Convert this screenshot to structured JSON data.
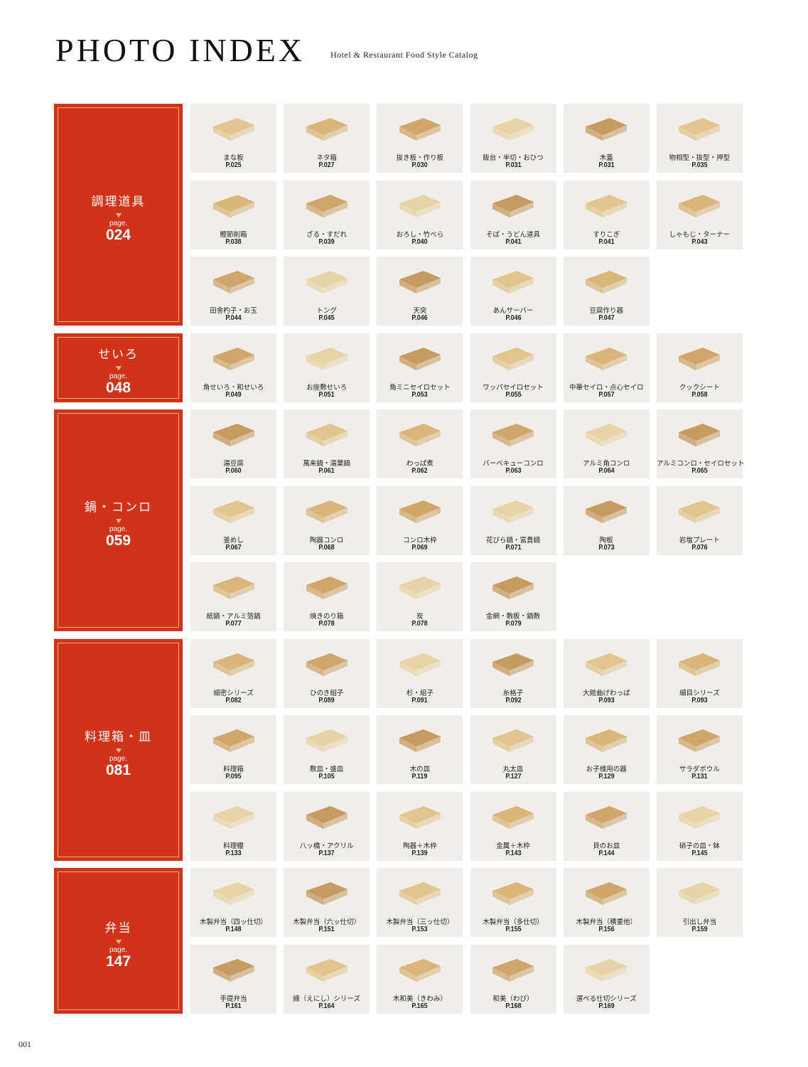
{
  "header": {
    "title": "PHOTO INDEX",
    "subtitle": "Hotel & Restaurant Food Style Catalog"
  },
  "colors": {
    "section_red": "#d13319",
    "cell_bg": "#efeeea",
    "gold": "#e4b27a"
  },
  "page_number": "001",
  "sections": [
    {
      "name": "調理道具",
      "page_label": "page.",
      "page": "024",
      "rows": 3,
      "items": [
        {
          "label": "まな板",
          "page": "P.025"
        },
        {
          "label": "ネタ箱",
          "page": "P.027"
        },
        {
          "label": "抜き板・作り板",
          "page": "P.030"
        },
        {
          "label": "飯台・半切・おひつ",
          "page": "P.031"
        },
        {
          "label": "木蓋",
          "page": "P.031"
        },
        {
          "label": "物相型・抜型・押型",
          "page": "P.035"
        },
        {
          "label": "鰹節削箱",
          "page": "P.038"
        },
        {
          "label": "ざる・すだれ",
          "page": "P.039"
        },
        {
          "label": "おろし・竹べら",
          "page": "P.040"
        },
        {
          "label": "そば・うどん道具",
          "page": "P.041"
        },
        {
          "label": "すりこぎ",
          "page": "P.041"
        },
        {
          "label": "しゃもじ・ターナー",
          "page": "P.043"
        },
        {
          "label": "田舎杓子・お玉",
          "page": "P.044"
        },
        {
          "label": "トング",
          "page": "P.045"
        },
        {
          "label": "天突",
          "page": "P.046"
        },
        {
          "label": "あんサーバー",
          "page": "P.046"
        },
        {
          "label": "豆腐作り器",
          "page": "P.047"
        }
      ]
    },
    {
      "name": "せいろ",
      "page_label": "page.",
      "page": "048",
      "rows": 1,
      "items": [
        {
          "label": "角せいろ・和せいろ",
          "page": "P.049"
        },
        {
          "label": "お座敷せいろ",
          "page": "P.051"
        },
        {
          "label": "角ミニセイロセット",
          "page": "P.053"
        },
        {
          "label": "ワッパセイロセット",
          "page": "P.055"
        },
        {
          "label": "中華セイロ・点心セイロ",
          "page": "P.057"
        },
        {
          "label": "クックシート",
          "page": "P.058"
        }
      ]
    },
    {
      "name": "鍋・コンロ",
      "page_label": "page.",
      "page": "059",
      "rows": 3,
      "items": [
        {
          "label": "湯豆腐",
          "page": "P.060"
        },
        {
          "label": "萬来鍋・湯葉鍋",
          "page": "P.061"
        },
        {
          "label": "わっぱ煮",
          "page": "P.062"
        },
        {
          "label": "バーベキューコンロ",
          "page": "P.063"
        },
        {
          "label": "アルミ角コンロ",
          "page": "P.064"
        },
        {
          "label": "アルミコンロ・セイロセット",
          "page": "P.065"
        },
        {
          "label": "釜めし",
          "page": "P.067"
        },
        {
          "label": "陶器コンロ",
          "page": "P.068"
        },
        {
          "label": "コンロ木枠",
          "page": "P.069"
        },
        {
          "label": "花びら鍋・富貴鍋",
          "page": "P.071"
        },
        {
          "label": "陶板",
          "page": "P.073"
        },
        {
          "label": "岩塩プレート",
          "page": "P.076"
        },
        {
          "label": "紙鍋・アルミ箔鍋",
          "page": "P.077"
        },
        {
          "label": "焼きのり箱",
          "page": "P.078"
        },
        {
          "label": "炭",
          "page": "P.078"
        },
        {
          "label": "金網・敷板・鍋敷",
          "page": "P.079"
        }
      ]
    },
    {
      "name": "料理箱・皿",
      "page_label": "page.",
      "page": "081",
      "rows": 3,
      "items": [
        {
          "label": "細密シリーズ",
          "page": "P.082"
        },
        {
          "label": "ひのき組子",
          "page": "P.089"
        },
        {
          "label": "杉・組子",
          "page": "P.091"
        },
        {
          "label": "糸格子",
          "page": "P.092"
        },
        {
          "label": "大館曲げわっぱ",
          "page": "P.093"
        },
        {
          "label": "細目シリーズ",
          "page": "P.093"
        },
        {
          "label": "料理箱",
          "page": "P.095"
        },
        {
          "label": "敷皿・盛皿",
          "page": "P.105"
        },
        {
          "label": "木の皿",
          "page": "P.119"
        },
        {
          "label": "丸太皿",
          "page": "P.127"
        },
        {
          "label": "お子様用の器",
          "page": "P.129"
        },
        {
          "label": "サラダボウル",
          "page": "P.131"
        },
        {
          "label": "料理棚",
          "page": "P.133"
        },
        {
          "label": "八ッ橋・アクリル",
          "page": "P.137"
        },
        {
          "label": "陶器＋木枠",
          "page": "P.139"
        },
        {
          "label": "金属＋木枠",
          "page": "P.143"
        },
        {
          "label": "貝のお皿",
          "page": "P.144"
        },
        {
          "label": "硝子の皿・鉢",
          "page": "P.145"
        }
      ]
    },
    {
      "name": "弁当",
      "page_label": "page.",
      "page": "147",
      "rows": 2,
      "items": [
        {
          "label": "木製弁当（四ッ仕切）",
          "page": "P.148"
        },
        {
          "label": "木製弁当（六ッ仕切）",
          "page": "P.151"
        },
        {
          "label": "木製弁当（三ッ仕切）",
          "page": "P.153"
        },
        {
          "label": "木製弁当（多仕切）",
          "page": "P.155"
        },
        {
          "label": "木製弁当（積重他）",
          "page": "P.156"
        },
        {
          "label": "引出し弁当",
          "page": "P.159"
        },
        {
          "label": "手提弁当",
          "page": "P.161"
        },
        {
          "label": "縁（えにし）シリーズ",
          "page": "P.164"
        },
        {
          "label": "木和美（きわみ）",
          "page": "P.165"
        },
        {
          "label": "和美（わび）",
          "page": "P.168"
        },
        {
          "label": "選べる仕切シリーズ",
          "page": "P.169"
        }
      ]
    }
  ]
}
